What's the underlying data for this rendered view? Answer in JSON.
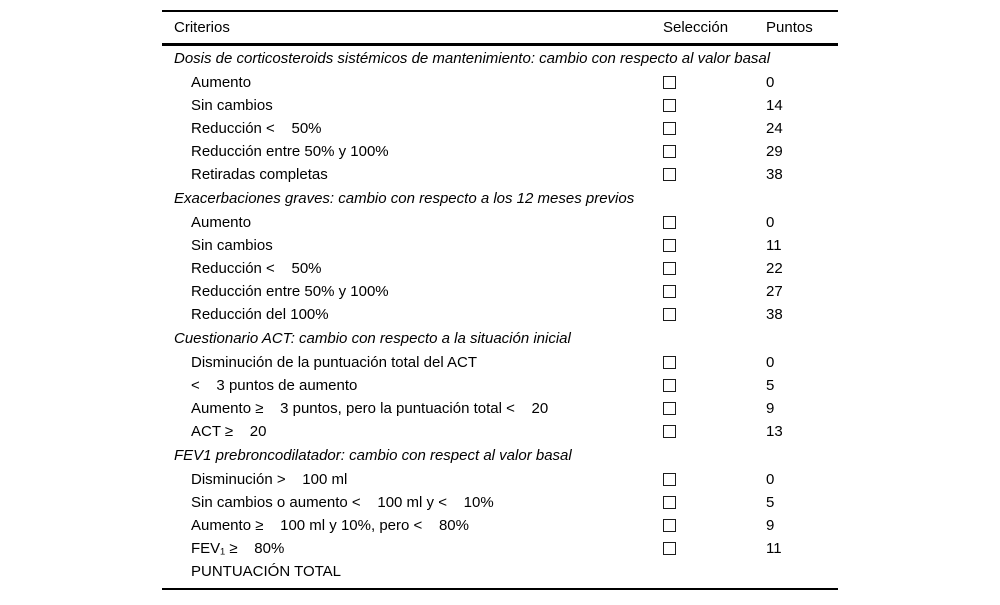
{
  "table": {
    "headers": {
      "criteria": "Criterios",
      "selection": "Selección",
      "points": "Puntos"
    },
    "sections": [
      {
        "title": "Dosis de corticosteroids sistémicos de mantenimiento: cambio con respecto al valor basal",
        "rows": [
          {
            "label": "Aumento",
            "checkbox": true,
            "points": "0"
          },
          {
            "label": "Sin cambios",
            "checkbox": true,
            "points": "14"
          },
          {
            "label": "Reducción <    50%",
            "checkbox": true,
            "points": "24"
          },
          {
            "label": "Reducción entre 50% y 100%",
            "checkbox": true,
            "points": "29"
          },
          {
            "label": "Retiradas completas",
            "checkbox": true,
            "points": "38"
          }
        ]
      },
      {
        "title": "Exacerbaciones graves: cambio con respecto a los 12 meses previos",
        "rows": [
          {
            "label": "Aumento",
            "checkbox": true,
            "points": "0"
          },
          {
            "label": "Sin cambios",
            "checkbox": true,
            "points": "11"
          },
          {
            "label": "Reducción <    50%",
            "checkbox": true,
            "points": "22"
          },
          {
            "label": "Reducción entre 50% y 100%",
            "checkbox": true,
            "points": "27"
          },
          {
            "label": "Reducción del 100%",
            "checkbox": true,
            "points": "38"
          }
        ]
      },
      {
        "title": "Cuestionario ACT: cambio con respecto a la situación inicial",
        "rows": [
          {
            "label": "Disminución de la puntuación total del ACT",
            "checkbox": true,
            "points": "0"
          },
          {
            "label": "<    3 puntos de aumento",
            "checkbox": true,
            "points": "5"
          },
          {
            "label": "Aumento ≥    3 puntos, pero la puntuación total <    20",
            "checkbox": true,
            "points": "9"
          },
          {
            "label": "ACT ≥    20",
            "checkbox": true,
            "points": "13"
          }
        ]
      },
      {
        "title": "FEV1 prebroncodilatador: cambio con respect al valor basal",
        "rows": [
          {
            "label": "Disminución >    100 ml",
            "checkbox": true,
            "points": "0"
          },
          {
            "label": "Sin cambios o aumento <    100 ml y <    10%",
            "checkbox": true,
            "points": "5"
          },
          {
            "label": "Aumento ≥    100 ml y 10%, pero <    80%",
            "checkbox": true,
            "points": "9"
          },
          {
            "label": "FEV₁ ≥    80%",
            "checkbox": true,
            "points": "11"
          },
          {
            "label": "PUNTUACIÓN TOTAL",
            "checkbox": false,
            "points": ""
          }
        ]
      }
    ]
  }
}
